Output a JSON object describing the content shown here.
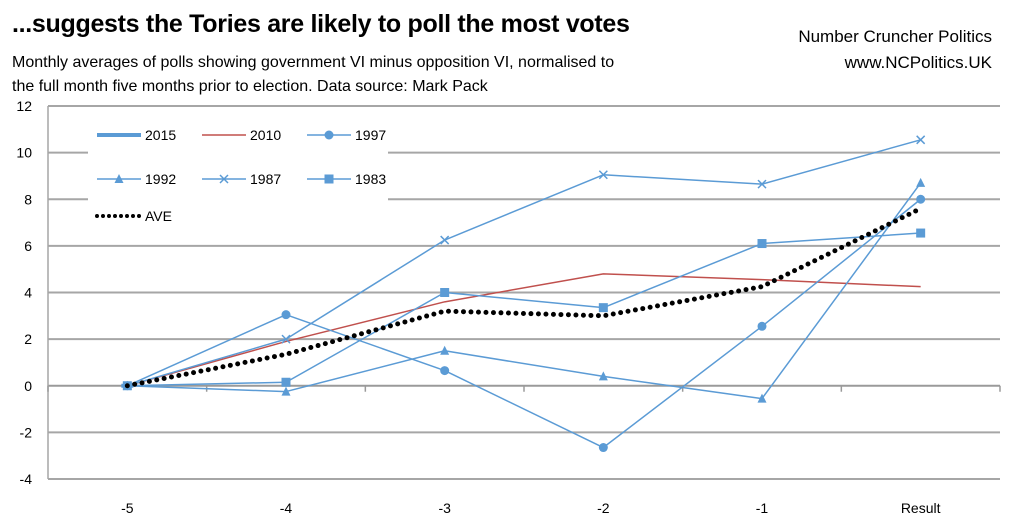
{
  "chart_data": {
    "type": "line",
    "title": "...suggests the Tories are likely to poll the most votes",
    "subtitle_lines": [
      "Monthly averages of polls showing government VI minus opposition VI, normalised to",
      "the full month five months prior to election. Data source: Mark Pack"
    ],
    "brand": [
      "Number Cruncher Politics",
      "www.NCPolitics.UK"
    ],
    "categories": [
      "-5",
      "-4",
      "-3",
      "-2",
      "-1",
      "Result"
    ],
    "ylim": [
      -4,
      12
    ],
    "yticks": [
      12,
      10,
      8,
      6,
      4,
      2,
      0,
      -2,
      -4
    ],
    "grid": true,
    "legend_position": "top-left",
    "series": [
      {
        "name": "2015",
        "color": "#5b9bd5",
        "marker": "none",
        "width": 4,
        "values": [
          0,
          null,
          null,
          null,
          null,
          null
        ]
      },
      {
        "name": "2010",
        "color": "#c0504d",
        "marker": "none",
        "width": 1.5,
        "values": [
          0,
          1.9,
          3.6,
          4.8,
          4.55,
          4.25
        ]
      },
      {
        "name": "1997",
        "color": "#5b9bd5",
        "marker": "circle",
        "width": 1.5,
        "values": [
          0,
          3.05,
          0.65,
          -2.65,
          2.55,
          8.0
        ]
      },
      {
        "name": "1992",
        "color": "#5b9bd5",
        "marker": "triangle",
        "width": 1.5,
        "values": [
          0,
          -0.25,
          1.5,
          0.4,
          -0.55,
          8.7
        ]
      },
      {
        "name": "1987",
        "color": "#5b9bd5",
        "marker": "x",
        "width": 1.5,
        "values": [
          0,
          2.0,
          6.25,
          9.05,
          8.65,
          10.55
        ]
      },
      {
        "name": "1983",
        "color": "#5b9bd5",
        "marker": "square",
        "width": 1.5,
        "values": [
          0,
          0.15,
          4.0,
          3.35,
          6.1,
          6.55
        ]
      },
      {
        "name": "AVE",
        "color": "#000000",
        "marker": "dotted",
        "width": 4,
        "values": [
          0,
          1.35,
          3.2,
          3.0,
          4.25,
          7.6
        ]
      }
    ]
  }
}
